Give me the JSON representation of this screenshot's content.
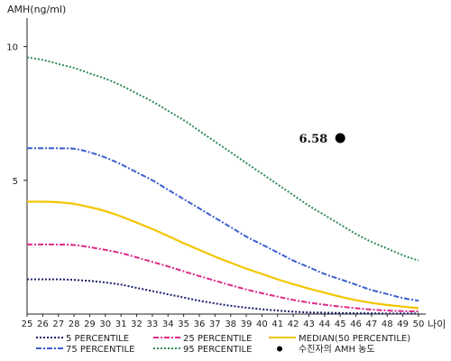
{
  "chart_data": {
    "type": "line",
    "ylabel": "AMH(ng/ml)",
    "xlabel": "나이",
    "ylim": [
      0,
      11
    ],
    "yticks": [
      5,
      10
    ],
    "x": [
      25,
      26,
      27,
      28,
      29,
      30,
      31,
      32,
      33,
      34,
      35,
      36,
      37,
      38,
      39,
      40,
      41,
      42,
      43,
      44,
      45,
      46,
      47,
      48,
      49,
      50
    ],
    "xlim": [
      25,
      50
    ],
    "grid": false,
    "legend_position": "bottom",
    "series": [
      {
        "name": "95 PERCENTILE",
        "color": "#2e8b57",
        "dash": "2,2",
        "values": [
          9.6,
          9.5,
          9.35,
          9.2,
          9.0,
          8.8,
          8.55,
          8.25,
          7.95,
          7.6,
          7.25,
          6.85,
          6.45,
          6.05,
          5.65,
          5.25,
          4.85,
          4.45,
          4.05,
          3.7,
          3.35,
          3.0,
          2.7,
          2.45,
          2.2,
          2.0
        ]
      },
      {
        "name": "75 PERCENTILE",
        "color": "#3a5fcd",
        "dash": "6,2,2,2",
        "values": [
          6.2,
          6.2,
          6.2,
          6.18,
          6.05,
          5.85,
          5.6,
          5.3,
          5.0,
          4.65,
          4.3,
          3.95,
          3.6,
          3.25,
          2.9,
          2.6,
          2.3,
          2.0,
          1.75,
          1.5,
          1.3,
          1.1,
          0.9,
          0.75,
          0.6,
          0.5
        ]
      },
      {
        "name": "MEDIAN(50 PERCENTILE)",
        "color": "#f2c500",
        "dash": "",
        "values": [
          4.2,
          4.2,
          4.18,
          4.12,
          4.0,
          3.85,
          3.65,
          3.42,
          3.18,
          2.92,
          2.65,
          2.4,
          2.15,
          1.92,
          1.7,
          1.5,
          1.3,
          1.12,
          0.95,
          0.8,
          0.65,
          0.52,
          0.42,
          0.34,
          0.28,
          0.22
        ]
      },
      {
        "name": "25 PERCENTILE",
        "color": "#dd2a8a",
        "dash": "6,2,2,2",
        "values": [
          2.6,
          2.6,
          2.6,
          2.58,
          2.5,
          2.4,
          2.28,
          2.12,
          1.95,
          1.78,
          1.6,
          1.42,
          1.25,
          1.08,
          0.92,
          0.78,
          0.65,
          0.53,
          0.43,
          0.35,
          0.28,
          0.22,
          0.17,
          0.13,
          0.11,
          0.1
        ]
      },
      {
        "name": "5 PERCENTILE",
        "color": "#1a1f6e",
        "dash": "2,2",
        "values": [
          1.3,
          1.3,
          1.3,
          1.28,
          1.24,
          1.18,
          1.1,
          0.98,
          0.86,
          0.74,
          0.62,
          0.5,
          0.4,
          0.31,
          0.24,
          0.18,
          0.13,
          0.09,
          0.06,
          0.05,
          0.04,
          0.03,
          0.03,
          0.02,
          0.02,
          0.02
        ]
      }
    ],
    "annotation": {
      "name": "수진자의 AMH 농도",
      "x": 45,
      "y": 6.58,
      "label": "6.58",
      "color": "#000000"
    },
    "legend": [
      {
        "label": "5 PERCENTILE",
        "series": "5 PERCENTILE"
      },
      {
        "label": "25 PERCENTILE",
        "series": "25 PERCENTILE"
      },
      {
        "label": "MEDIAN(50 PERCENTILE)",
        "series": "MEDIAN(50 PERCENTILE)"
      },
      {
        "label": "75 PERCENTILE",
        "series": "75 PERCENTILE"
      },
      {
        "label": "95 PERCENTILE",
        "series": "95 PERCENTILE"
      },
      {
        "label": "수진자의 AMH 농도",
        "marker": "dot"
      }
    ]
  }
}
